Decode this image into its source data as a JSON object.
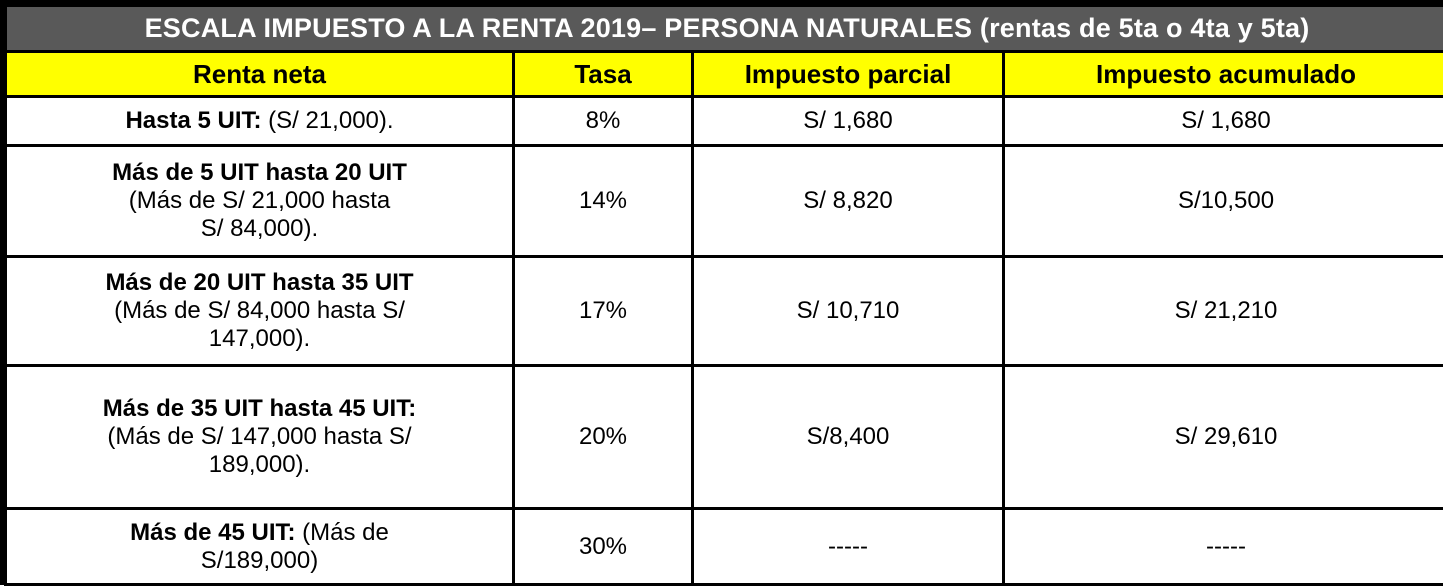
{
  "table": {
    "title": "ESCALA IMPUESTO A LA RENTA 2019– PERSONA NATURALES (rentas de 5ta o 4ta y 5ta)",
    "columns": {
      "renta": "Renta neta",
      "tasa": "Tasa",
      "parcial": "Impuesto parcial",
      "acumulado": "Impuesto acumulado"
    },
    "rows": [
      {
        "renta_bold": "Hasta 5 UIT:",
        "renta_rest": " (S/ 21,000).",
        "tasa": "8%",
        "parcial": "S/ 1,680",
        "acumulado": "S/ 1,680"
      },
      {
        "renta_bold": "Más de 5 UIT hasta 20 UIT",
        "renta_rest": "(Más de S/ 21,000  hasta\nS/ 84,000).",
        "tasa": "14%",
        "parcial": "S/ 8,820",
        "acumulado": "S/10,500"
      },
      {
        "renta_bold": "Más de 20 UIT hasta 35 UIT",
        "renta_rest": "(Más de S/ 84,000 hasta S/\n147,000).",
        "tasa": "17%",
        "parcial": "S/ 10,710",
        "acumulado": "S/ 21,210"
      },
      {
        "renta_bold": "Más de 35 UIT hasta 45 UIT:",
        "renta_rest": "(Más de S/ 147,000 hasta S/\n189,000).",
        "tasa": "20%",
        "parcial": "S/8,400",
        "acumulado": "S/ 29,610"
      },
      {
        "renta_bold": "Más de 45 UIT:",
        "renta_rest": " (Más de\nS/189,000)",
        "tasa": "30%",
        "parcial": "-----",
        "acumulado": "-----"
      }
    ],
    "colors": {
      "title_background": "#595959",
      "title_text": "#ffffff",
      "header_background": "#ffff00",
      "border": "#000000",
      "body_background": "#ffffff"
    }
  }
}
